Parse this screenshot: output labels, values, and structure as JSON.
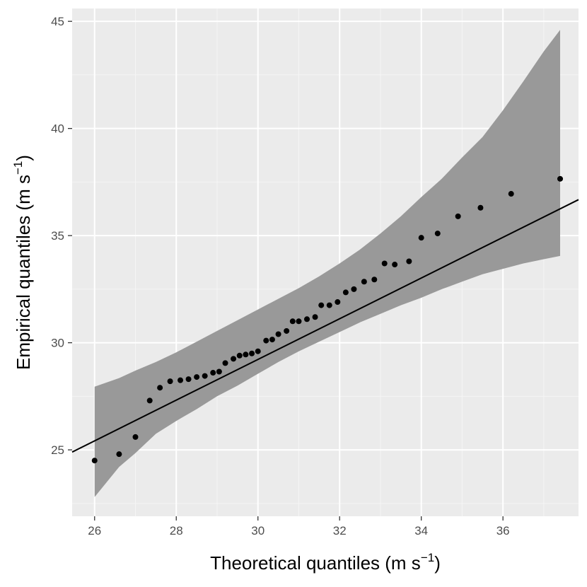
{
  "chart_data": {
    "type": "scatter",
    "title": "",
    "xlabel": {
      "main": "Theoretical quantiles (m s",
      "sup": "−1",
      "close": ")"
    },
    "ylabel": {
      "main": "Empirical quantiles (m s",
      "sup": "−1",
      "close": ")"
    },
    "xlim": [
      25.45,
      37.85
    ],
    "ylim": [
      21.9,
      45.6
    ],
    "x_ticks": [
      26,
      28,
      30,
      32,
      34,
      36
    ],
    "y_ticks": [
      25,
      30,
      35,
      40,
      45
    ],
    "grid": true,
    "legend": "none",
    "colors": {
      "panel": "#ebebeb",
      "grid_major": "#ffffff",
      "grid_minor": "#f5f5f5",
      "band": "#999999",
      "points": "#000000",
      "line": "#000000"
    },
    "points": [
      [
        26.0,
        24.5
      ],
      [
        26.6,
        24.8
      ],
      [
        27.0,
        25.6
      ],
      [
        27.35,
        27.3
      ],
      [
        27.6,
        27.9
      ],
      [
        27.85,
        28.2
      ],
      [
        28.1,
        28.25
      ],
      [
        28.3,
        28.3
      ],
      [
        28.5,
        28.4
      ],
      [
        28.7,
        28.45
      ],
      [
        28.9,
        28.6
      ],
      [
        29.05,
        28.65
      ],
      [
        29.2,
        29.05
      ],
      [
        29.4,
        29.25
      ],
      [
        29.55,
        29.4
      ],
      [
        29.7,
        29.45
      ],
      [
        29.85,
        29.5
      ],
      [
        30.0,
        29.6
      ],
      [
        30.2,
        30.1
      ],
      [
        30.35,
        30.15
      ],
      [
        30.5,
        30.4
      ],
      [
        30.7,
        30.55
      ],
      [
        30.85,
        31.0
      ],
      [
        31.0,
        31.0
      ],
      [
        31.2,
        31.1
      ],
      [
        31.4,
        31.2
      ],
      [
        31.55,
        31.75
      ],
      [
        31.75,
        31.75
      ],
      [
        31.95,
        31.9
      ],
      [
        32.15,
        32.35
      ],
      [
        32.35,
        32.5
      ],
      [
        32.6,
        32.85
      ],
      [
        32.85,
        32.95
      ],
      [
        33.1,
        33.7
      ],
      [
        33.35,
        33.65
      ],
      [
        33.7,
        33.8
      ],
      [
        34.0,
        34.9
      ],
      [
        34.4,
        35.1
      ],
      [
        34.9,
        35.9
      ],
      [
        35.45,
        36.3
      ],
      [
        36.2,
        36.95
      ],
      [
        37.4,
        37.65
      ]
    ],
    "line": {
      "intercept": 0.72,
      "slope": 0.95
    },
    "band_upper": [
      [
        26.0,
        27.95
      ],
      [
        26.6,
        28.35
      ],
      [
        27.0,
        28.7
      ],
      [
        27.5,
        29.1
      ],
      [
        28.0,
        29.55
      ],
      [
        28.5,
        30.05
      ],
      [
        29.0,
        30.55
      ],
      [
        29.5,
        31.05
      ],
      [
        30.0,
        31.55
      ],
      [
        30.5,
        32.05
      ],
      [
        31.0,
        32.55
      ],
      [
        31.5,
        33.1
      ],
      [
        32.0,
        33.7
      ],
      [
        32.5,
        34.35
      ],
      [
        33.0,
        35.1
      ],
      [
        33.5,
        35.9
      ],
      [
        34.0,
        36.8
      ],
      [
        34.5,
        37.65
      ],
      [
        35.0,
        38.65
      ],
      [
        35.5,
        39.6
      ],
      [
        36.0,
        40.85
      ],
      [
        36.5,
        42.2
      ],
      [
        37.0,
        43.6
      ],
      [
        37.4,
        44.6
      ]
    ],
    "band_lower": [
      [
        26.0,
        22.8
      ],
      [
        26.6,
        24.2
      ],
      [
        27.0,
        24.85
      ],
      [
        27.5,
        25.75
      ],
      [
        28.0,
        26.35
      ],
      [
        28.5,
        26.9
      ],
      [
        29.0,
        27.5
      ],
      [
        29.5,
        28.0
      ],
      [
        30.0,
        28.55
      ],
      [
        30.5,
        29.1
      ],
      [
        31.0,
        29.6
      ],
      [
        31.5,
        30.05
      ],
      [
        32.0,
        30.5
      ],
      [
        32.5,
        30.95
      ],
      [
        33.0,
        31.35
      ],
      [
        33.5,
        31.75
      ],
      [
        34.0,
        32.1
      ],
      [
        34.5,
        32.5
      ],
      [
        35.0,
        32.85
      ],
      [
        35.5,
        33.2
      ],
      [
        36.0,
        33.45
      ],
      [
        36.5,
        33.7
      ],
      [
        37.0,
        33.9
      ],
      [
        37.4,
        34.05
      ]
    ]
  }
}
